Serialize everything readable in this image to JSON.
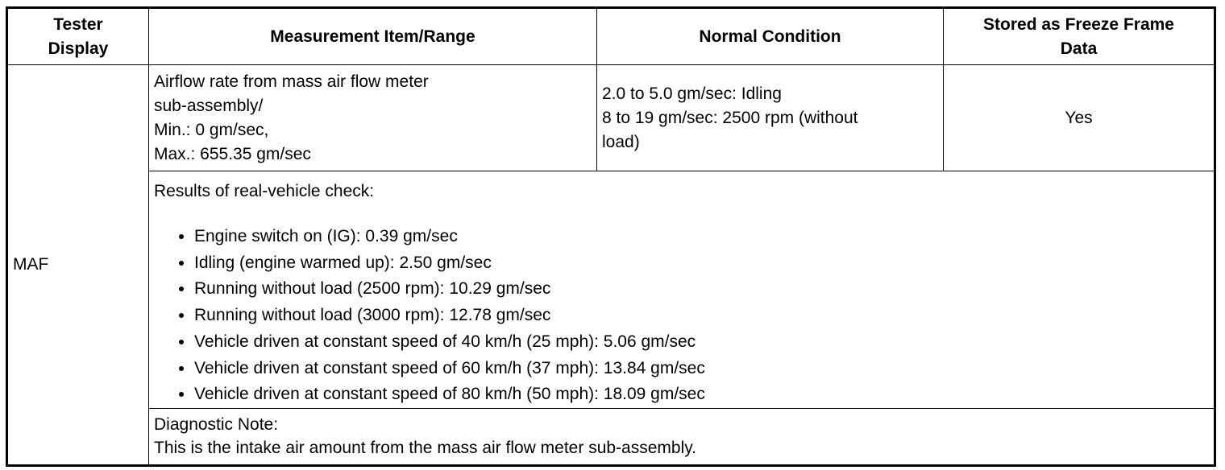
{
  "table": {
    "header": [
      [
        "Tester",
        "Display"
      ],
      [
        "Measurement Item/Range"
      ],
      [
        "Normal Condition"
      ],
      [
        "Stored as Freeze Frame",
        "Data"
      ]
    ],
    "tester_display": "MAF",
    "measurement": [
      "Airflow rate from mass air flow meter",
      "sub-assembly/",
      "Min.: 0 gm/sec,",
      "Max.: 655.35 gm/sec"
    ],
    "normal_condition": [
      "2.0 to 5.0 gm/sec: Idling",
      "8 to 19 gm/sec: 2500 rpm (without",
      "load)"
    ],
    "freeze_frame": "Yes",
    "results": {
      "title": "Results of real-vehicle check:",
      "items": [
        "Engine switch on (IG): 0.39 gm/sec",
        "Idling (engine warmed up): 2.50 gm/sec",
        "Running without load (2500 rpm): 10.29 gm/sec",
        "Running without load (3000 rpm): 12.78 gm/sec",
        "Vehicle driven at constant speed of 40 km/h (25 mph): 5.06 gm/sec",
        "Vehicle driven at constant speed of 60 km/h (37 mph): 13.84 gm/sec",
        "Vehicle driven at constant speed of 80 km/h (50 mph): 18.09 gm/sec"
      ]
    },
    "note": {
      "title": "Diagnostic Note:",
      "text": "This is the intake air amount from the mass air flow meter sub-assembly."
    }
  }
}
